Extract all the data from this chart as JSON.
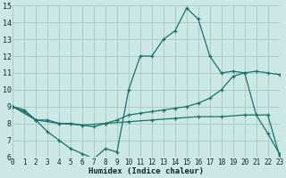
{
  "xlabel": "Humidex (Indice chaleur)",
  "bg_color": "#cce8e5",
  "grid_color": "#a8cdc9",
  "line_color": "#1a706a",
  "xlim": [
    0,
    23
  ],
  "ylim": [
    6,
    15
  ],
  "yticks": [
    6,
    7,
    8,
    9,
    10,
    11,
    12,
    13,
    14,
    15
  ],
  "xticks": [
    0,
    1,
    2,
    3,
    4,
    5,
    6,
    7,
    8,
    9,
    10,
    11,
    12,
    13,
    14,
    15,
    16,
    17,
    18,
    19,
    20,
    21,
    22,
    23
  ],
  "line1_x": [
    0,
    1,
    2,
    3,
    4,
    5,
    6,
    7,
    8,
    9,
    10,
    11,
    12,
    13,
    14,
    15,
    16,
    17,
    18,
    19,
    20,
    21,
    22,
    23
  ],
  "line1_y": [
    9.0,
    8.7,
    8.2,
    7.5,
    7.0,
    6.5,
    6.2,
    5.9,
    6.5,
    6.3,
    10.0,
    12.0,
    12.0,
    13.0,
    13.5,
    14.85,
    14.2,
    12.0,
    11.0,
    11.1,
    11.0,
    8.5,
    7.4,
    6.2
  ],
  "line2_x": [
    0,
    1,
    2,
    3,
    4,
    5,
    6,
    7,
    8,
    9,
    10,
    11,
    12,
    13,
    14,
    15,
    16,
    17,
    18,
    19,
    20,
    21,
    22,
    23
  ],
  "line2_y": [
    9.0,
    8.8,
    8.2,
    8.2,
    8.0,
    8.0,
    7.9,
    7.8,
    8.0,
    8.2,
    8.5,
    8.6,
    8.7,
    8.8,
    8.9,
    9.0,
    9.2,
    9.5,
    10.0,
    10.8,
    11.0,
    11.1,
    11.0,
    10.9
  ],
  "line3_x": [
    0,
    2,
    4,
    6,
    8,
    10,
    12,
    14,
    16,
    18,
    20,
    22,
    23
  ],
  "line3_y": [
    9.0,
    8.2,
    8.0,
    7.9,
    8.0,
    8.1,
    8.2,
    8.3,
    8.4,
    8.4,
    8.5,
    8.5,
    6.1
  ]
}
